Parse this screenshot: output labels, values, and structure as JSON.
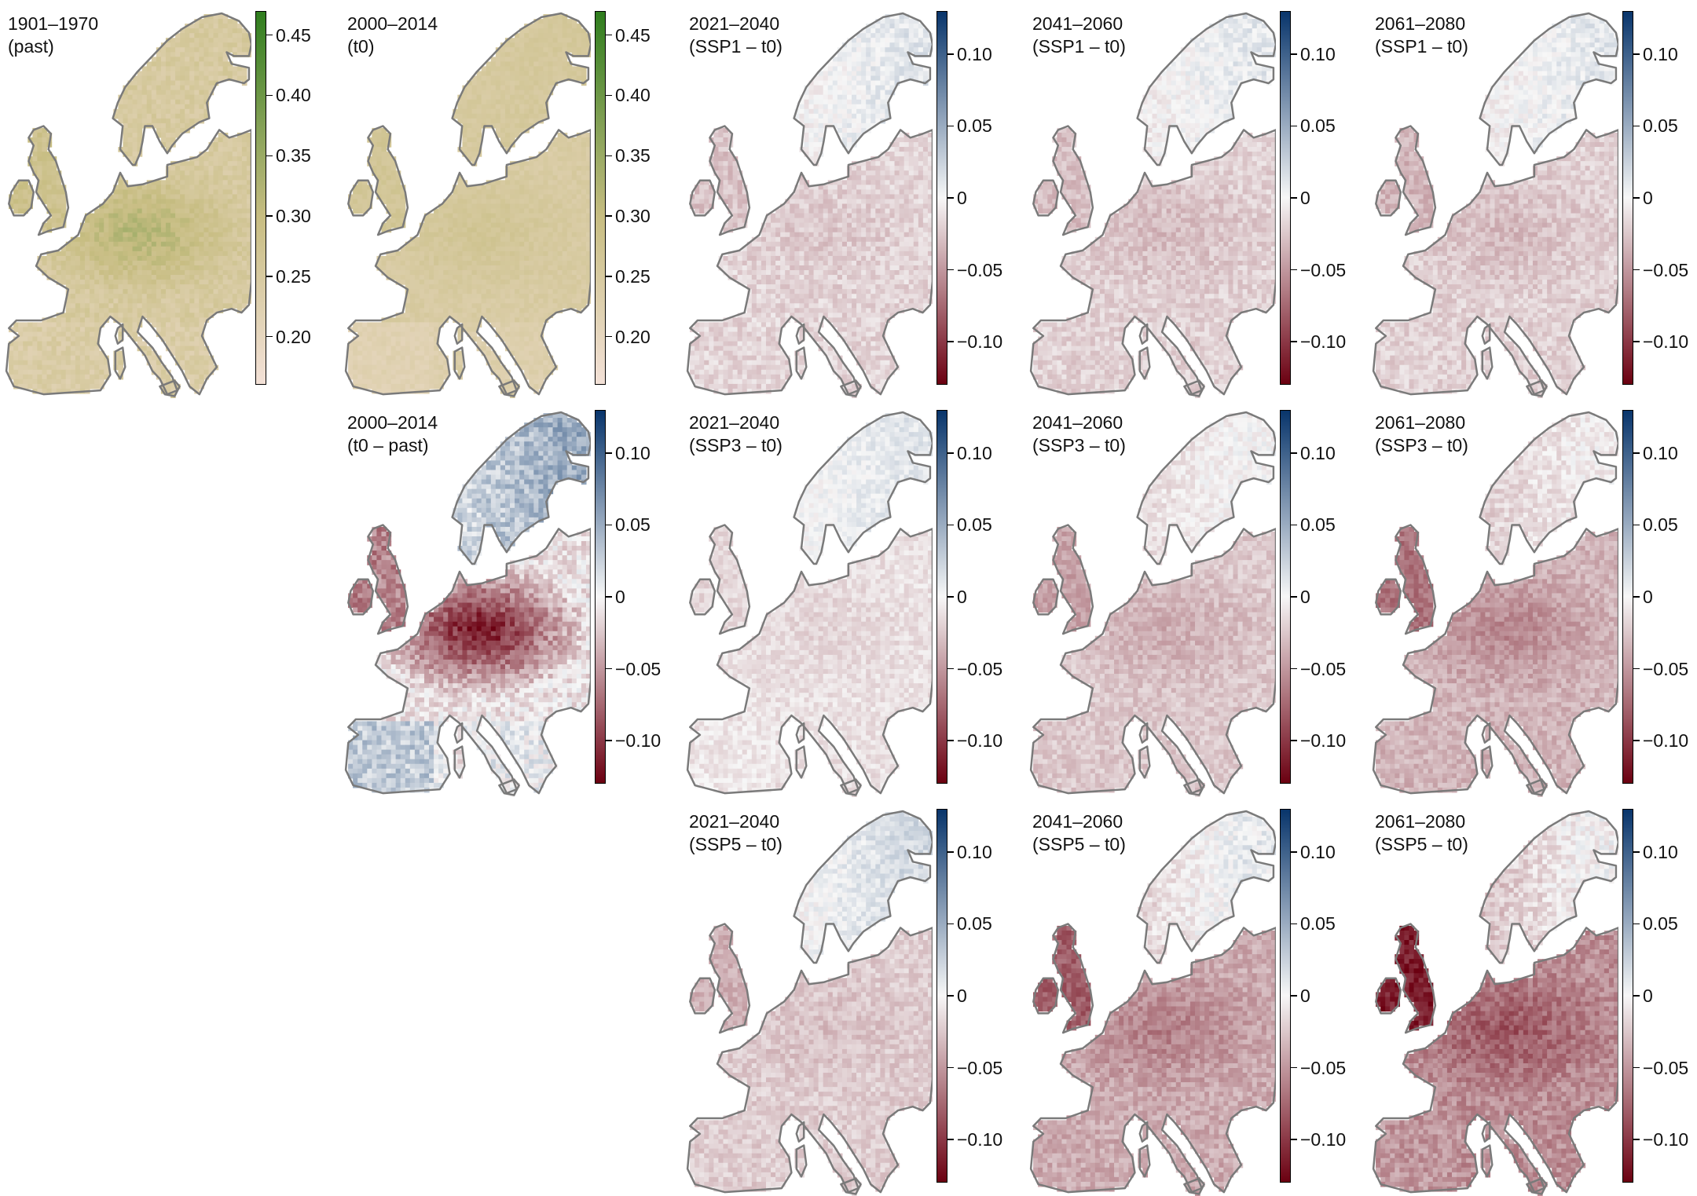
{
  "colorscales": {
    "absolute": {
      "min_color": "#f3e1d7",
      "mid_color": "#c7bd82",
      "max_color": "#2f7d1e",
      "range": [
        0.16,
        0.47
      ],
      "ticks": [
        0.2,
        0.25,
        0.3,
        0.35,
        0.4,
        0.45
      ],
      "tick_labels": [
        "0.20",
        "0.25",
        "0.30",
        "0.35",
        "0.40",
        "0.45"
      ]
    },
    "difference": {
      "neg_color": "#6b0011",
      "mid_color": "#f7f7f7",
      "pos_color": "#08356b",
      "range": [
        -0.13,
        0.13
      ],
      "ticks": [
        0.1,
        0.05,
        0,
        -0.05,
        -0.1
      ],
      "tick_labels": [
        "0.10",
        "0.05",
        "0",
        "−0.05",
        "−0.10"
      ]
    }
  },
  "outline_color": "#7a7a7a",
  "panels": [
    {
      "id": "past",
      "row": 0,
      "col": 0,
      "line1": "1901–1970",
      "line2": "(past)",
      "scale": "absolute",
      "base": 0.25,
      "north": 0.0,
      "central": 0.06,
      "south": -0.01,
      "iberia": 0.0,
      "uk": 0.03,
      "noise": 0.02
    },
    {
      "id": "t0",
      "row": 0,
      "col": 1,
      "line1": "2000–2014",
      "line2": "(t0)",
      "scale": "absolute",
      "base": 0.245,
      "north": 0.01,
      "central": 0.02,
      "south": -0.015,
      "iberia": -0.01,
      "uk": 0.02,
      "noise": 0.012
    },
    {
      "id": "ssp1-2030",
      "row": 0,
      "col": 2,
      "line1": "2021–2040",
      "line2": "(SSP1 – t0)",
      "scale": "difference",
      "base": -0.018,
      "north": 0.025,
      "central": -0.006,
      "south": 0.0,
      "iberia": 0.0,
      "uk": -0.01,
      "noise": 0.012
    },
    {
      "id": "ssp1-2050",
      "row": 0,
      "col": 3,
      "line1": "2041–2060",
      "line2": "(SSP1 – t0)",
      "scale": "difference",
      "base": -0.02,
      "north": 0.025,
      "central": -0.01,
      "south": 0.0,
      "iberia": 0.0,
      "uk": -0.01,
      "noise": 0.012
    },
    {
      "id": "ssp1-2070",
      "row": 0,
      "col": 4,
      "line1": "2061–2080",
      "line2": "(SSP1 – t0)",
      "scale": "difference",
      "base": -0.02,
      "north": 0.025,
      "central": -0.01,
      "south": 0.0,
      "iberia": 0.0,
      "uk": -0.015,
      "noise": 0.012
    },
    {
      "id": "t0-past",
      "row": 1,
      "col": 1,
      "line1": "2000–2014",
      "line2": "(t0 – past)",
      "scale": "difference",
      "base": -0.01,
      "north": 0.05,
      "central": -0.09,
      "south": 0.015,
      "iberia": 0.025,
      "uk": -0.05,
      "noise": 0.022
    },
    {
      "id": "ssp3-2030",
      "row": 1,
      "col": 2,
      "line1": "2021–2040",
      "line2": "(SSP3 – t0)",
      "scale": "difference",
      "base": -0.012,
      "north": 0.02,
      "central": -0.005,
      "south": 0.0,
      "iberia": 0.003,
      "uk": -0.005,
      "noise": 0.01
    },
    {
      "id": "ssp3-2050",
      "row": 1,
      "col": 3,
      "line1": "2041–2060",
      "line2": "(SSP3 – t0)",
      "scale": "difference",
      "base": -0.025,
      "north": 0.02,
      "central": -0.012,
      "south": 0.0,
      "iberia": 0.0,
      "uk": -0.02,
      "noise": 0.012
    },
    {
      "id": "ssp3-2070",
      "row": 1,
      "col": 4,
      "line1": "2061–2080",
      "line2": "(SSP3 – t0)",
      "scale": "difference",
      "base": -0.035,
      "north": 0.025,
      "central": -0.02,
      "south": 0.0,
      "iberia": 0.0,
      "uk": -0.035,
      "noise": 0.013
    },
    {
      "id": "ssp5-2030",
      "row": 2,
      "col": 2,
      "line1": "2021–2040",
      "line2": "(SSP5 – t0)",
      "scale": "difference",
      "base": -0.022,
      "north": 0.035,
      "central": -0.006,
      "south": 0.0,
      "iberia": 0.0,
      "uk": -0.015,
      "noise": 0.012
    },
    {
      "id": "ssp5-2050",
      "row": 2,
      "col": 3,
      "line1": "2041–2060",
      "line2": "(SSP5 – t0)",
      "scale": "difference",
      "base": -0.04,
      "north": 0.04,
      "central": -0.02,
      "south": 0.0,
      "iberia": 0.0,
      "uk": -0.04,
      "noise": 0.014
    },
    {
      "id": "ssp5-2070",
      "row": 2,
      "col": 4,
      "line1": "2061–2080",
      "line2": "(SSP5 – t0)",
      "scale": "difference",
      "base": -0.055,
      "north": 0.045,
      "central": -0.025,
      "south": 0.0,
      "iberia": 0.005,
      "uk": -0.06,
      "noise": 0.016
    }
  ]
}
